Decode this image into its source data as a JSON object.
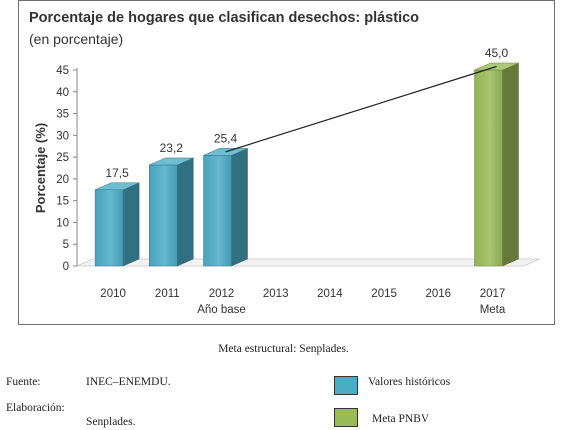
{
  "chart_data": {
    "type": "bar",
    "title": "Porcentaje de hogares que clasifican desechos: plástico",
    "subtitle": "(en porcentaje)",
    "ylabel": "Porcentaje (%)",
    "ylim": [
      0,
      45
    ],
    "yticks": [
      0,
      5,
      10,
      15,
      20,
      25,
      30,
      35,
      40,
      45
    ],
    "categories": [
      "2010",
      "2011",
      "2012",
      "2013",
      "2014",
      "2015",
      "2016",
      "2017"
    ],
    "category_sublabels": {
      "2012": "Año base",
      "2017": "Meta"
    },
    "series": [
      {
        "name": "Valores históricos",
        "color": "#4bacc6",
        "values": [
          17.5,
          23.2,
          25.4,
          null,
          null,
          null,
          null,
          null
        ],
        "labels": [
          "17,5",
          "23,2",
          "25,4",
          null,
          null,
          null,
          null,
          null
        ]
      },
      {
        "name": "Meta PNBV",
        "color": "#9bbb59",
        "values": [
          null,
          null,
          null,
          null,
          null,
          null,
          null,
          45.0
        ],
        "labels": [
          null,
          null,
          null,
          null,
          null,
          null,
          null,
          "45,0"
        ]
      }
    ],
    "trend_line": {
      "from": "2012",
      "to": "2017"
    },
    "grid": false
  },
  "caption": "Meta estructural: Senplades.",
  "footer": {
    "fuente_label": "Fuente:",
    "fuente_value": "INEC–ENEMDU.",
    "elaboracion_label": "Elaboración:",
    "elaboracion_value": "Senplades."
  },
  "legend": {
    "historic_label": "Valores históricos",
    "historic_color": "#4bacc6",
    "meta_label": "Meta PNBV",
    "meta_color": "#9bbb59"
  }
}
